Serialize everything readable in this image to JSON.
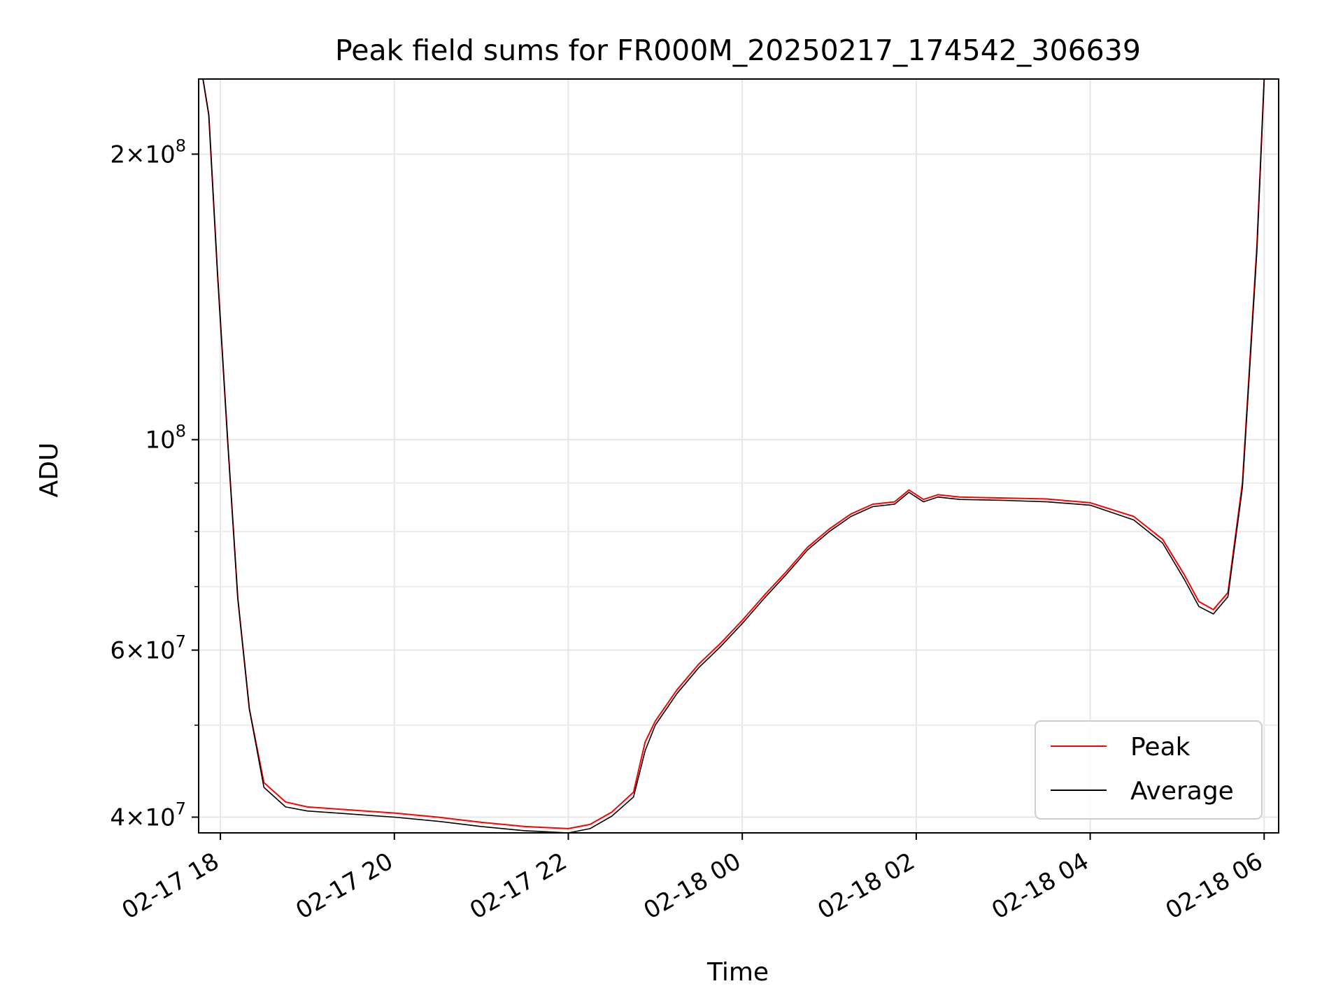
{
  "chart_data": {
    "type": "line",
    "title": "Peak field sums for FR000M_20250217_174542_306639",
    "xlabel": "Time",
    "ylabel": "ADU",
    "yscale": "log",
    "ylim": [
      38500000,
      240000000
    ],
    "xlim": [
      "2025-02-17 17:45",
      "2025-02-18 06:10"
    ],
    "grid": true,
    "legend_position": "lower right",
    "x_ticks": [
      {
        "value": "2025-02-17 18:00",
        "label": "02-17 18"
      },
      {
        "value": "2025-02-17 20:00",
        "label": "02-17 20"
      },
      {
        "value": "2025-02-17 22:00",
        "label": "02-17 22"
      },
      {
        "value": "2025-02-18 00:00",
        "label": "02-18 00"
      },
      {
        "value": "2025-02-18 02:00",
        "label": "02-18 02"
      },
      {
        "value": "2025-02-18 04:00",
        "label": "02-18 04"
      },
      {
        "value": "2025-02-18 06:00",
        "label": "02-18 06"
      }
    ],
    "y_ticks": [
      {
        "value": 40000000,
        "mantissa": "4",
        "exponent": "7"
      },
      {
        "value": 60000000,
        "mantissa": "6",
        "exponent": "7"
      },
      {
        "value": 100000000,
        "mantissa": "",
        "exponent": "8"
      },
      {
        "value": 200000000,
        "mantissa": "2",
        "exponent": "8"
      }
    ],
    "y_minor_ticks": [
      50000000,
      70000000,
      80000000,
      90000000
    ],
    "series": [
      {
        "name": "Peak",
        "color": "#ff0000",
        "x": [
          "2025-02-17 17:48",
          "2025-02-17 17:52",
          "2025-02-17 17:58",
          "2025-02-17 18:05",
          "2025-02-17 18:12",
          "2025-02-17 18:20",
          "2025-02-17 18:30",
          "2025-02-17 18:45",
          "2025-02-17 19:00",
          "2025-02-17 19:30",
          "2025-02-17 20:00",
          "2025-02-17 20:30",
          "2025-02-17 21:00",
          "2025-02-17 21:30",
          "2025-02-17 22:00",
          "2025-02-17 22:15",
          "2025-02-17 22:30",
          "2025-02-17 22:45",
          "2025-02-17 22:53",
          "2025-02-17 23:00",
          "2025-02-17 23:15",
          "2025-02-17 23:30",
          "2025-02-17 23:45",
          "2025-02-18 00:00",
          "2025-02-18 00:15",
          "2025-02-18 00:30",
          "2025-02-18 00:45",
          "2025-02-18 01:00",
          "2025-02-18 01:15",
          "2025-02-18 01:30",
          "2025-02-18 01:45",
          "2025-02-18 01:55",
          "2025-02-18 02:05",
          "2025-02-18 02:15",
          "2025-02-18 02:30",
          "2025-02-18 03:00",
          "2025-02-18 03:30",
          "2025-02-18 04:00",
          "2025-02-18 04:30",
          "2025-02-18 04:50",
          "2025-02-18 05:05",
          "2025-02-18 05:15",
          "2025-02-18 05:25",
          "2025-02-18 05:35",
          "2025-02-18 05:45",
          "2025-02-18 05:55",
          "2025-02-18 06:00"
        ],
        "y": [
          240000000,
          220000000,
          150000000,
          100000000,
          68000000,
          52000000,
          43500000,
          41500000,
          41000000,
          40700000,
          40400000,
          40000000,
          39500000,
          39100000,
          38900000,
          39300000,
          40500000,
          42500000,
          48000000,
          50500000,
          54500000,
          58000000,
          61000000,
          64500000,
          68500000,
          72500000,
          77000000,
          80500000,
          83500000,
          85500000,
          86000000,
          88500000,
          86500000,
          87500000,
          87000000,
          86800000,
          86600000,
          85800000,
          83000000,
          78500000,
          72000000,
          67500000,
          66200000,
          69000000,
          90000000,
          160000000,
          240000000
        ]
      },
      {
        "name": "Average",
        "color": "#000000",
        "x": [
          "2025-02-17 17:48",
          "2025-02-17 17:52",
          "2025-02-17 17:58",
          "2025-02-17 18:05",
          "2025-02-17 18:12",
          "2025-02-17 18:20",
          "2025-02-17 18:30",
          "2025-02-17 18:45",
          "2025-02-17 19:00",
          "2025-02-17 19:30",
          "2025-02-17 20:00",
          "2025-02-17 20:30",
          "2025-02-17 21:00",
          "2025-02-17 21:30",
          "2025-02-17 22:00",
          "2025-02-17 22:15",
          "2025-02-17 22:30",
          "2025-02-17 22:45",
          "2025-02-17 22:53",
          "2025-02-17 23:00",
          "2025-02-17 23:15",
          "2025-02-17 23:30",
          "2025-02-17 23:45",
          "2025-02-18 00:00",
          "2025-02-18 00:15",
          "2025-02-18 00:30",
          "2025-02-18 00:45",
          "2025-02-18 01:00",
          "2025-02-18 01:15",
          "2025-02-18 01:30",
          "2025-02-18 01:45",
          "2025-02-18 01:55",
          "2025-02-18 02:05",
          "2025-02-18 02:15",
          "2025-02-18 02:30",
          "2025-02-18 03:00",
          "2025-02-18 03:30",
          "2025-02-18 04:00",
          "2025-02-18 04:30",
          "2025-02-18 04:50",
          "2025-02-18 05:05",
          "2025-02-18 05:15",
          "2025-02-18 05:25",
          "2025-02-18 05:35",
          "2025-02-18 05:45",
          "2025-02-18 05:55",
          "2025-02-18 06:00"
        ],
        "y": [
          240000000,
          220000000,
          150000000,
          100000000,
          68000000,
          52000000,
          43000000,
          41000000,
          40600000,
          40300000,
          40000000,
          39600000,
          39100000,
          38700000,
          38500000,
          38900000,
          40100000,
          42000000,
          47000000,
          50000000,
          54000000,
          57500000,
          60500000,
          64000000,
          68000000,
          72000000,
          76500000,
          80000000,
          83000000,
          85000000,
          85500000,
          88000000,
          86000000,
          87000000,
          86500000,
          86300000,
          86000000,
          85300000,
          82300000,
          77800000,
          71200000,
          66700000,
          65500000,
          68300000,
          89000000,
          158000000,
          240000000
        ]
      }
    ]
  }
}
